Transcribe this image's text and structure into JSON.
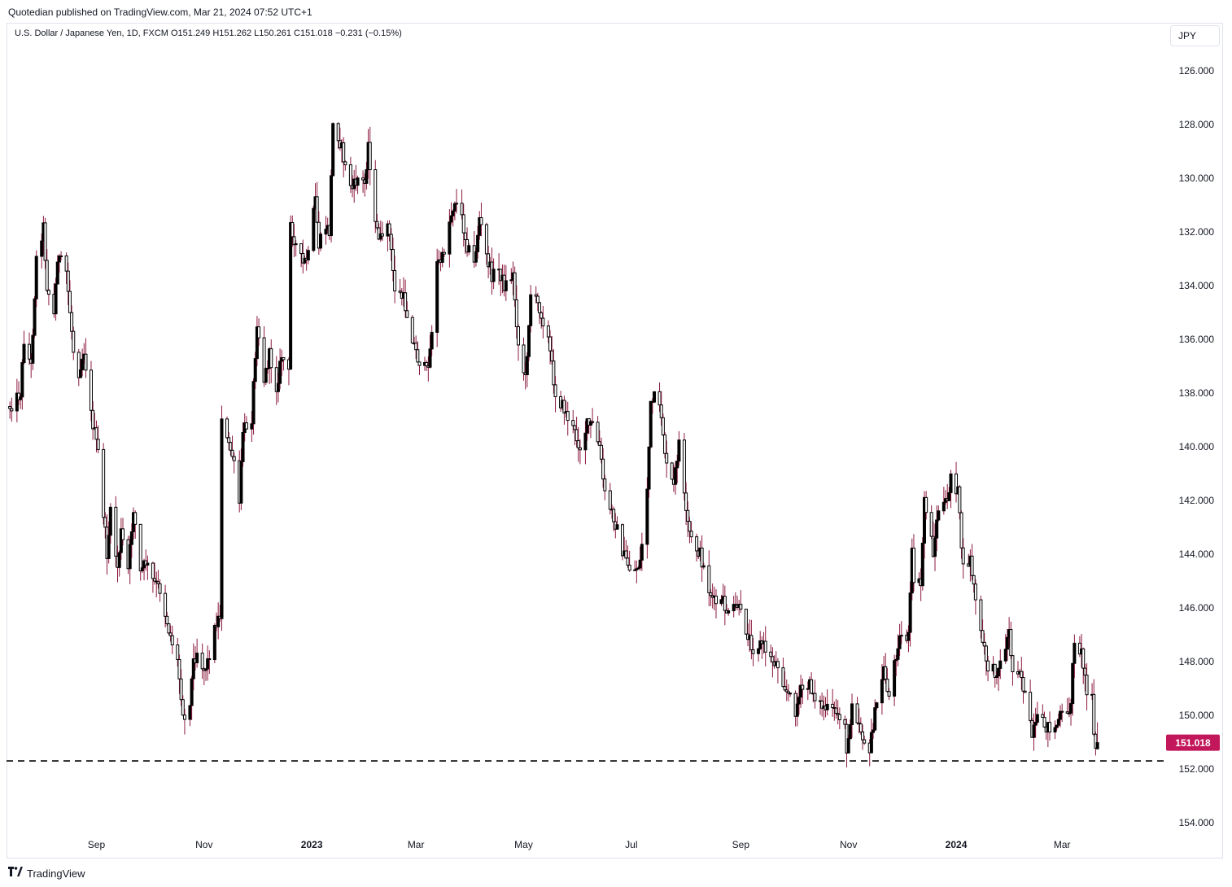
{
  "header": {
    "published": "Quotedian published on TradingView.com, Mar 21, 2024 07:52 UTC+1"
  },
  "legend": {
    "text": "U.S. Dollar / Japanese Yen, 1D, FXCM  O151.249  H151.262  L150.261  C151.018  −0.231 (−0.15%)"
  },
  "currency_button": "JPY",
  "footer": {
    "brand": "TradingView"
  },
  "colors": {
    "up": "#ffffff",
    "down": "#000000",
    "wick": "#8b1a3c",
    "last_price_bg": "#c2185b"
  },
  "icons": [
    "tradingview-logo-icon"
  ],
  "chart_data": {
    "type": "candlestick",
    "title": "U.S. Dollar / Japanese Yen",
    "interval": "1D",
    "source": "FXCM",
    "y_axis_inverted": true,
    "ylim": [
      125,
      155
    ],
    "y_ticks": [
      "126.000",
      "128.000",
      "130.000",
      "132.000",
      "134.000",
      "136.000",
      "138.000",
      "140.000",
      "142.000",
      "144.000",
      "146.000",
      "148.000",
      "150.000",
      "152.000",
      "154.000"
    ],
    "x_ticks": [
      {
        "label": "Sep",
        "date": "2022-09-01",
        "bold": false
      },
      {
        "label": "Nov",
        "date": "2022-11-01",
        "bold": false
      },
      {
        "label": "2023",
        "date": "2023-01-01",
        "bold": true
      },
      {
        "label": "Mar",
        "date": "2023-03-01",
        "bold": false
      },
      {
        "label": "May",
        "date": "2023-05-01",
        "bold": false
      },
      {
        "label": "Jul",
        "date": "2023-07-01",
        "bold": false
      },
      {
        "label": "Sep",
        "date": "2023-09-01",
        "bold": false
      },
      {
        "label": "Nov",
        "date": "2023-11-01",
        "bold": false
      },
      {
        "label": "2024",
        "date": "2024-01-01",
        "bold": true
      },
      {
        "label": "Mar",
        "date": "2024-03-01",
        "bold": false
      }
    ],
    "x_range": [
      "2022-07-13",
      "2024-04-16"
    ],
    "last_price": {
      "value": 151.018,
      "label": "151.018"
    },
    "reference_line": {
      "value": 151.7,
      "style": "dashed"
    },
    "price_path": [
      [
        "2022-07-14",
        138.5
      ],
      [
        "2022-07-20",
        138.0
      ],
      [
        "2022-07-22",
        136.0
      ],
      [
        "2022-07-26",
        137.0
      ],
      [
        "2022-07-29",
        133.0
      ],
      [
        "2022-08-02",
        131.8
      ],
      [
        "2022-08-04",
        134.0
      ],
      [
        "2022-08-08",
        135.1
      ],
      [
        "2022-08-10",
        132.9
      ],
      [
        "2022-08-15",
        133.5
      ],
      [
        "2022-08-19",
        136.4
      ],
      [
        "2022-08-22",
        137.2
      ],
      [
        "2022-08-25",
        136.4
      ],
      [
        "2022-08-29",
        138.8
      ],
      [
        "2022-09-02",
        140.2
      ],
      [
        "2022-09-07",
        144.0
      ],
      [
        "2022-09-09",
        142.5
      ],
      [
        "2022-09-13",
        144.5
      ],
      [
        "2022-09-15",
        143.2
      ],
      [
        "2022-09-19",
        144.6
      ],
      [
        "2022-09-22",
        142.3
      ],
      [
        "2022-09-26",
        144.7
      ],
      [
        "2022-09-29",
        144.3
      ],
      [
        "2022-10-03",
        145.0
      ],
      [
        "2022-10-07",
        145.3
      ],
      [
        "2022-10-12",
        146.8
      ],
      [
        "2022-10-17",
        148.0
      ],
      [
        "2022-10-20",
        149.8
      ],
      [
        "2022-10-21",
        150.2
      ],
      [
        "2022-10-24",
        149.4
      ],
      [
        "2022-10-26",
        148.0
      ],
      [
        "2022-10-28",
        147.6
      ],
      [
        "2022-11-01",
        148.3
      ],
      [
        "2022-11-03",
        148.0
      ],
      [
        "2022-11-08",
        146.5
      ],
      [
        "2022-11-10",
        146.3
      ],
      [
        "2022-11-11",
        138.8
      ],
      [
        "2022-11-14",
        139.8
      ],
      [
        "2022-11-17",
        140.3
      ],
      [
        "2022-11-21",
        142.1
      ],
      [
        "2022-11-23",
        139.4
      ],
      [
        "2022-11-28",
        138.9
      ],
      [
        "2022-12-01",
        135.3
      ],
      [
        "2022-12-05",
        137.5
      ],
      [
        "2022-12-08",
        136.6
      ],
      [
        "2022-12-12",
        137.8
      ],
      [
        "2022-12-15",
        136.6
      ],
      [
        "2022-12-19",
        137.3
      ],
      [
        "2022-12-20",
        131.7
      ],
      [
        "2022-12-23",
        132.5
      ],
      [
        "2022-12-27",
        133.2
      ],
      [
        "2022-12-30",
        132.9
      ],
      [
        "2023-01-03",
        130.8
      ],
      [
        "2023-01-05",
        132.5
      ],
      [
        "2023-01-09",
        131.8
      ],
      [
        "2023-01-11",
        132.0
      ],
      [
        "2023-01-13",
        128.0
      ],
      [
        "2023-01-16",
        128.4
      ],
      [
        "2023-01-18",
        128.9
      ],
      [
        "2023-01-20",
        129.6
      ],
      [
        "2023-01-24",
        130.4
      ],
      [
        "2023-01-27",
        130.0
      ],
      [
        "2023-01-31",
        130.2
      ],
      [
        "2023-02-02",
        128.7
      ],
      [
        "2023-02-06",
        131.8
      ],
      [
        "2023-02-10",
        132.4
      ],
      [
        "2023-02-13",
        131.5
      ],
      [
        "2023-02-17",
        134.1
      ],
      [
        "2023-02-22",
        134.5
      ],
      [
        "2023-02-28",
        136.2
      ],
      [
        "2023-03-02",
        136.7
      ],
      [
        "2023-03-07",
        137.2
      ],
      [
        "2023-03-09",
        136.4
      ],
      [
        "2023-03-13",
        133.2
      ],
      [
        "2023-03-16",
        133.0
      ],
      [
        "2023-03-20",
        131.6
      ],
      [
        "2023-03-23",
        130.8
      ],
      [
        "2023-03-27",
        131.5
      ],
      [
        "2023-03-30",
        132.5
      ],
      [
        "2023-04-03",
        133.2
      ],
      [
        "2023-04-06",
        131.5
      ],
      [
        "2023-04-10",
        132.9
      ],
      [
        "2023-04-13",
        133.6
      ],
      [
        "2023-04-17",
        133.4
      ],
      [
        "2023-04-20",
        134.0
      ],
      [
        "2023-04-25",
        133.6
      ],
      [
        "2023-04-28",
        136.2
      ],
      [
        "2023-05-02",
        137.5
      ],
      [
        "2023-05-05",
        134.3
      ],
      [
        "2023-05-10",
        134.8
      ],
      [
        "2023-05-15",
        136.0
      ],
      [
        "2023-05-19",
        138.0
      ],
      [
        "2023-05-24",
        138.6
      ],
      [
        "2023-05-30",
        139.5
      ],
      [
        "2023-06-02",
        140.0
      ],
      [
        "2023-06-06",
        139.2
      ],
      [
        "2023-06-09",
        139.2
      ],
      [
        "2023-06-13",
        140.0
      ],
      [
        "2023-06-16",
        141.8
      ],
      [
        "2023-06-21",
        142.6
      ],
      [
        "2023-06-27",
        144.1
      ],
      [
        "2023-06-30",
        144.5
      ],
      [
        "2023-07-03",
        144.6
      ],
      [
        "2023-07-06",
        144.3
      ],
      [
        "2023-07-10",
        141.5
      ],
      [
        "2023-07-12",
        138.5
      ],
      [
        "2023-07-14",
        138.2
      ],
      [
        "2023-07-18",
        138.8
      ],
      [
        "2023-07-21",
        140.8
      ],
      [
        "2023-07-25",
        141.5
      ],
      [
        "2023-07-28",
        139.8
      ],
      [
        "2023-08-01",
        142.6
      ],
      [
        "2023-08-04",
        143.5
      ],
      [
        "2023-08-09",
        144.0
      ],
      [
        "2023-08-14",
        145.3
      ],
      [
        "2023-08-17",
        145.8
      ],
      [
        "2023-08-22",
        145.8
      ],
      [
        "2023-08-25",
        146.3
      ],
      [
        "2023-08-30",
        145.9
      ],
      [
        "2023-09-04",
        146.8
      ],
      [
        "2023-09-08",
        147.5
      ],
      [
        "2023-09-13",
        147.3
      ],
      [
        "2023-09-18",
        147.9
      ],
      [
        "2023-09-22",
        148.1
      ],
      [
        "2023-09-27",
        149.1
      ],
      [
        "2023-10-02",
        149.8
      ],
      [
        "2023-10-05",
        149.1
      ],
      [
        "2023-10-10",
        148.9
      ],
      [
        "2023-10-16",
        149.6
      ],
      [
        "2023-10-20",
        149.8
      ],
      [
        "2023-10-25",
        149.9
      ],
      [
        "2023-10-30",
        150.2
      ],
      [
        "2023-10-31",
        151.6
      ],
      [
        "2023-11-03",
        149.4
      ],
      [
        "2023-11-07",
        150.3
      ],
      [
        "2023-11-13",
        151.6
      ],
      [
        "2023-11-14",
        150.7
      ],
      [
        "2023-11-17",
        149.6
      ],
      [
        "2023-11-21",
        148.3
      ],
      [
        "2023-11-24",
        149.3
      ],
      [
        "2023-11-29",
        147.3
      ],
      [
        "2023-12-01",
        147.0
      ],
      [
        "2023-12-05",
        147.1
      ],
      [
        "2023-12-07",
        144.0
      ],
      [
        "2023-12-08",
        144.9
      ],
      [
        "2023-12-12",
        145.2
      ],
      [
        "2023-12-14",
        141.9
      ],
      [
        "2023-12-19",
        143.9
      ],
      [
        "2023-12-22",
        142.3
      ],
      [
        "2023-12-27",
        142.1
      ],
      [
        "2023-12-29",
        141.0
      ],
      [
        "2024-01-02",
        141.7
      ],
      [
        "2024-01-05",
        144.6
      ],
      [
        "2024-01-09",
        144.2
      ],
      [
        "2024-01-11",
        145.2
      ],
      [
        "2024-01-15",
        147.0
      ],
      [
        "2024-01-19",
        148.2
      ],
      [
        "2024-01-23",
        148.4
      ],
      [
        "2024-01-26",
        148.1
      ],
      [
        "2024-01-31",
        146.9
      ],
      [
        "2024-02-02",
        148.4
      ],
      [
        "2024-02-06",
        148.2
      ],
      [
        "2024-02-09",
        149.3
      ],
      [
        "2024-02-13",
        150.8
      ],
      [
        "2024-02-16",
        150.2
      ],
      [
        "2024-02-21",
        150.4
      ],
      [
        "2024-02-26",
        150.5
      ],
      [
        "2024-02-29",
        150.0
      ],
      [
        "2024-03-04",
        150.1
      ],
      [
        "2024-03-06",
        149.4
      ],
      [
        "2024-03-08",
        147.1
      ],
      [
        "2024-03-12",
        147.7
      ],
      [
        "2024-03-15",
        149.0
      ],
      [
        "2024-03-18",
        149.1
      ],
      [
        "2024-03-19",
        150.8
      ],
      [
        "2024-03-20",
        151.2
      ],
      [
        "2024-03-21",
        151.0
      ]
    ]
  }
}
